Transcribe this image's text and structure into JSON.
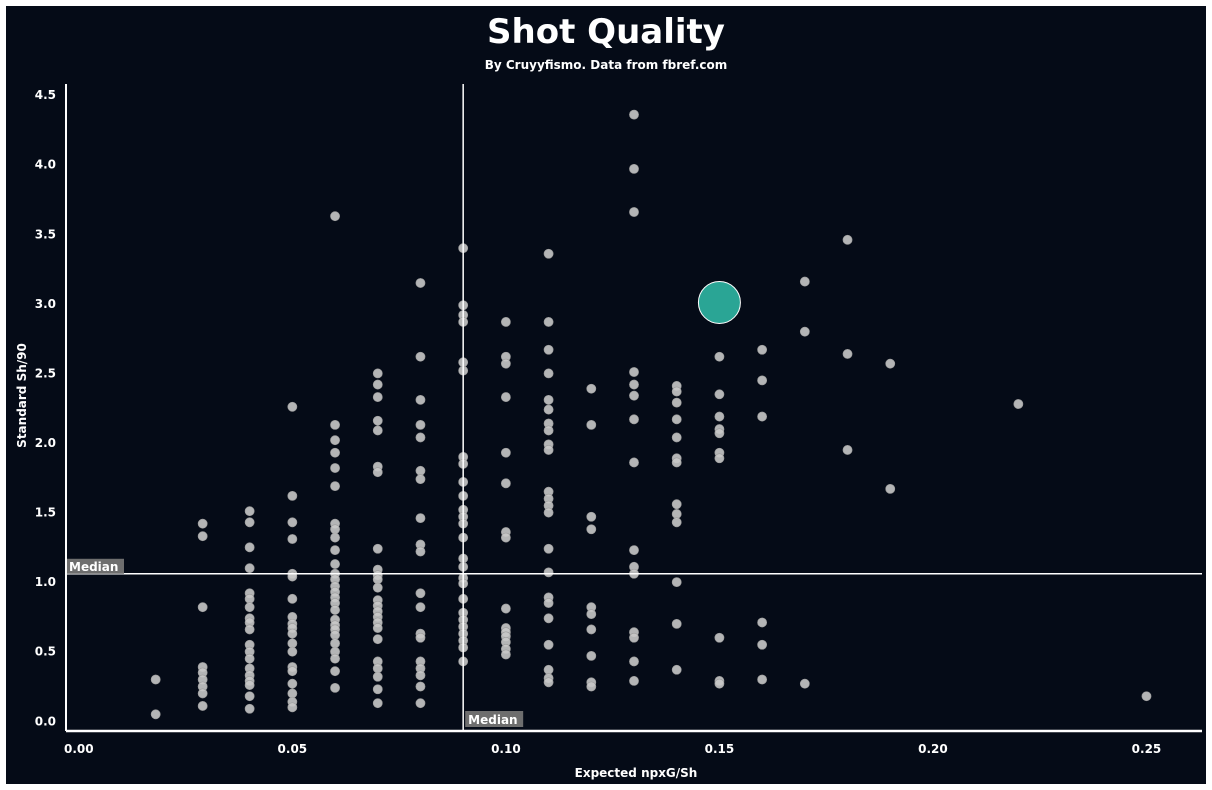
{
  "chart_data": {
    "type": "scatter",
    "title": "Shot Quality",
    "subtitle": "By Cruyyfismo. Data from fbref.com",
    "xlabel": "Expected npxG/Sh",
    "ylabel": "Standard Sh/90",
    "xlim": [
      -0.003,
      0.263
    ],
    "ylim": [
      -0.07,
      4.58
    ],
    "xticks": [
      "0.00",
      "0.05",
      "0.10",
      "0.15",
      "0.20",
      "0.25"
    ],
    "yticks": [
      "0.0",
      "0.5",
      "1.0",
      "1.5",
      "2.0",
      "2.5",
      "3.0",
      "3.5",
      "4.0",
      "4.5"
    ],
    "grid": false,
    "median_lines": {
      "x": 0.09,
      "y": 1.06,
      "x_label": "Median",
      "y_label": "Median"
    },
    "colors": {
      "background": "#050b17",
      "points": "#c8c8c8",
      "highlight": "#2aa595",
      "axis": "#ffffff",
      "median_label_bg": "#6e6e6e"
    },
    "highlight_point": {
      "x": 0.15,
      "y": 3.01
    },
    "points": [
      [
        0.018,
        0.3
      ],
      [
        0.018,
        0.05
      ],
      [
        0.029,
        1.42
      ],
      [
        0.029,
        1.33
      ],
      [
        0.029,
        0.82
      ],
      [
        0.029,
        0.39
      ],
      [
        0.029,
        0.35
      ],
      [
        0.029,
        0.3
      ],
      [
        0.029,
        0.25
      ],
      [
        0.029,
        0.2
      ],
      [
        0.029,
        0.11
      ],
      [
        0.04,
        1.51
      ],
      [
        0.04,
        1.43
      ],
      [
        0.04,
        1.25
      ],
      [
        0.04,
        1.1
      ],
      [
        0.04,
        0.92
      ],
      [
        0.04,
        0.88
      ],
      [
        0.04,
        0.82
      ],
      [
        0.04,
        0.74
      ],
      [
        0.04,
        0.71
      ],
      [
        0.04,
        0.66
      ],
      [
        0.04,
        0.55
      ],
      [
        0.04,
        0.5
      ],
      [
        0.04,
        0.45
      ],
      [
        0.04,
        0.38
      ],
      [
        0.04,
        0.33
      ],
      [
        0.04,
        0.29
      ],
      [
        0.04,
        0.26
      ],
      [
        0.04,
        0.18
      ],
      [
        0.04,
        0.09
      ],
      [
        0.05,
        2.26
      ],
      [
        0.05,
        1.62
      ],
      [
        0.05,
        1.43
      ],
      [
        0.05,
        1.31
      ],
      [
        0.05,
        1.06
      ],
      [
        0.05,
        1.04
      ],
      [
        0.05,
        0.88
      ],
      [
        0.05,
        0.75
      ],
      [
        0.05,
        0.7
      ],
      [
        0.05,
        0.67
      ],
      [
        0.05,
        0.63
      ],
      [
        0.05,
        0.56
      ],
      [
        0.05,
        0.5
      ],
      [
        0.05,
        0.39
      ],
      [
        0.05,
        0.36
      ],
      [
        0.05,
        0.27
      ],
      [
        0.05,
        0.2
      ],
      [
        0.05,
        0.14
      ],
      [
        0.05,
        0.1
      ],
      [
        0.06,
        3.63
      ],
      [
        0.06,
        2.13
      ],
      [
        0.06,
        2.02
      ],
      [
        0.06,
        1.93
      ],
      [
        0.06,
        1.82
      ],
      [
        0.06,
        1.69
      ],
      [
        0.06,
        1.42
      ],
      [
        0.06,
        1.38
      ],
      [
        0.06,
        1.32
      ],
      [
        0.06,
        1.23
      ],
      [
        0.06,
        1.13
      ],
      [
        0.06,
        1.06
      ],
      [
        0.06,
        1.02
      ],
      [
        0.06,
        0.97
      ],
      [
        0.06,
        0.93
      ],
      [
        0.06,
        0.89
      ],
      [
        0.06,
        0.85
      ],
      [
        0.06,
        0.8
      ],
      [
        0.06,
        0.73
      ],
      [
        0.06,
        0.69
      ],
      [
        0.06,
        0.66
      ],
      [
        0.06,
        0.62
      ],
      [
        0.06,
        0.56
      ],
      [
        0.06,
        0.5
      ],
      [
        0.06,
        0.45
      ],
      [
        0.06,
        0.36
      ],
      [
        0.06,
        0.24
      ],
      [
        0.07,
        2.5
      ],
      [
        0.07,
        2.42
      ],
      [
        0.07,
        2.33
      ],
      [
        0.07,
        2.16
      ],
      [
        0.07,
        2.09
      ],
      [
        0.07,
        1.83
      ],
      [
        0.07,
        1.79
      ],
      [
        0.07,
        1.24
      ],
      [
        0.07,
        1.09
      ],
      [
        0.07,
        1.05
      ],
      [
        0.07,
        1.02
      ],
      [
        0.07,
        0.96
      ],
      [
        0.07,
        0.87
      ],
      [
        0.07,
        0.83
      ],
      [
        0.07,
        0.79
      ],
      [
        0.07,
        0.75
      ],
      [
        0.07,
        0.71
      ],
      [
        0.07,
        0.67
      ],
      [
        0.07,
        0.59
      ],
      [
        0.07,
        0.43
      ],
      [
        0.07,
        0.38
      ],
      [
        0.07,
        0.32
      ],
      [
        0.07,
        0.23
      ],
      [
        0.07,
        0.13
      ],
      [
        0.08,
        3.15
      ],
      [
        0.08,
        2.62
      ],
      [
        0.08,
        2.31
      ],
      [
        0.08,
        2.13
      ],
      [
        0.08,
        2.04
      ],
      [
        0.08,
        1.8
      ],
      [
        0.08,
        1.74
      ],
      [
        0.08,
        1.46
      ],
      [
        0.08,
        1.27
      ],
      [
        0.08,
        1.22
      ],
      [
        0.08,
        0.92
      ],
      [
        0.08,
        0.82
      ],
      [
        0.08,
        0.63
      ],
      [
        0.08,
        0.6
      ],
      [
        0.08,
        0.43
      ],
      [
        0.08,
        0.38
      ],
      [
        0.08,
        0.33
      ],
      [
        0.08,
        0.25
      ],
      [
        0.08,
        0.13
      ],
      [
        0.09,
        3.4
      ],
      [
        0.09,
        2.99
      ],
      [
        0.09,
        2.92
      ],
      [
        0.09,
        2.87
      ],
      [
        0.09,
        2.58
      ],
      [
        0.09,
        2.52
      ],
      [
        0.09,
        1.9
      ],
      [
        0.09,
        1.85
      ],
      [
        0.09,
        1.72
      ],
      [
        0.09,
        1.62
      ],
      [
        0.09,
        1.52
      ],
      [
        0.09,
        1.47
      ],
      [
        0.09,
        1.42
      ],
      [
        0.09,
        1.32
      ],
      [
        0.09,
        1.17
      ],
      [
        0.09,
        1.11
      ],
      [
        0.09,
        1.03
      ],
      [
        0.09,
        0.99
      ],
      [
        0.09,
        0.88
      ],
      [
        0.09,
        0.78
      ],
      [
        0.09,
        0.73
      ],
      [
        0.09,
        0.68
      ],
      [
        0.09,
        0.63
      ],
      [
        0.09,
        0.58
      ],
      [
        0.09,
        0.53
      ],
      [
        0.09,
        0.43
      ],
      [
        0.1,
        2.87
      ],
      [
        0.1,
        2.62
      ],
      [
        0.1,
        2.57
      ],
      [
        0.1,
        2.33
      ],
      [
        0.1,
        1.93
      ],
      [
        0.1,
        1.71
      ],
      [
        0.1,
        1.36
      ],
      [
        0.1,
        1.32
      ],
      [
        0.1,
        0.81
      ],
      [
        0.1,
        0.67
      ],
      [
        0.1,
        0.64
      ],
      [
        0.1,
        0.61
      ],
      [
        0.1,
        0.57
      ],
      [
        0.1,
        0.52
      ],
      [
        0.1,
        0.48
      ],
      [
        0.11,
        3.36
      ],
      [
        0.11,
        2.87
      ],
      [
        0.11,
        2.67
      ],
      [
        0.11,
        2.5
      ],
      [
        0.11,
        2.31
      ],
      [
        0.11,
        2.24
      ],
      [
        0.11,
        2.14
      ],
      [
        0.11,
        2.09
      ],
      [
        0.11,
        1.99
      ],
      [
        0.11,
        1.95
      ],
      [
        0.11,
        1.65
      ],
      [
        0.11,
        1.6
      ],
      [
        0.11,
        1.55
      ],
      [
        0.11,
        1.5
      ],
      [
        0.11,
        1.24
      ],
      [
        0.11,
        1.07
      ],
      [
        0.11,
        0.89
      ],
      [
        0.11,
        0.85
      ],
      [
        0.11,
        0.74
      ],
      [
        0.11,
        0.55
      ],
      [
        0.11,
        0.37
      ],
      [
        0.11,
        0.31
      ],
      [
        0.11,
        0.28
      ],
      [
        0.12,
        2.39
      ],
      [
        0.12,
        2.13
      ],
      [
        0.12,
        1.47
      ],
      [
        0.12,
        1.38
      ],
      [
        0.12,
        0.82
      ],
      [
        0.12,
        0.77
      ],
      [
        0.12,
        0.66
      ],
      [
        0.12,
        0.47
      ],
      [
        0.12,
        0.28
      ],
      [
        0.12,
        0.25
      ],
      [
        0.13,
        4.36
      ],
      [
        0.13,
        3.97
      ],
      [
        0.13,
        3.66
      ],
      [
        0.13,
        2.51
      ],
      [
        0.13,
        2.42
      ],
      [
        0.13,
        2.34
      ],
      [
        0.13,
        2.17
      ],
      [
        0.13,
        1.86
      ],
      [
        0.13,
        1.23
      ],
      [
        0.13,
        1.11
      ],
      [
        0.13,
        1.06
      ],
      [
        0.13,
        0.64
      ],
      [
        0.13,
        0.6
      ],
      [
        0.13,
        0.43
      ],
      [
        0.13,
        0.29
      ],
      [
        0.14,
        2.41
      ],
      [
        0.14,
        2.37
      ],
      [
        0.14,
        2.29
      ],
      [
        0.14,
        2.17
      ],
      [
        0.14,
        2.04
      ],
      [
        0.14,
        1.89
      ],
      [
        0.14,
        1.86
      ],
      [
        0.14,
        1.56
      ],
      [
        0.14,
        1.49
      ],
      [
        0.14,
        1.43
      ],
      [
        0.14,
        1.0
      ],
      [
        0.14,
        0.7
      ],
      [
        0.14,
        0.37
      ],
      [
        0.15,
        2.62
      ],
      [
        0.15,
        2.35
      ],
      [
        0.15,
        2.19
      ],
      [
        0.15,
        2.1
      ],
      [
        0.15,
        2.07
      ],
      [
        0.15,
        1.93
      ],
      [
        0.15,
        1.89
      ],
      [
        0.15,
        0.6
      ],
      [
        0.15,
        0.29
      ],
      [
        0.15,
        0.27
      ],
      [
        0.16,
        2.67
      ],
      [
        0.16,
        2.45
      ],
      [
        0.16,
        2.19
      ],
      [
        0.16,
        0.71
      ],
      [
        0.16,
        0.55
      ],
      [
        0.16,
        0.3
      ],
      [
        0.17,
        3.16
      ],
      [
        0.17,
        2.8
      ],
      [
        0.17,
        0.27
      ],
      [
        0.18,
        3.46
      ],
      [
        0.18,
        2.64
      ],
      [
        0.18,
        1.95
      ],
      [
        0.19,
        2.57
      ],
      [
        0.19,
        1.67
      ],
      [
        0.22,
        2.28
      ],
      [
        0.25,
        0.18
      ]
    ]
  }
}
